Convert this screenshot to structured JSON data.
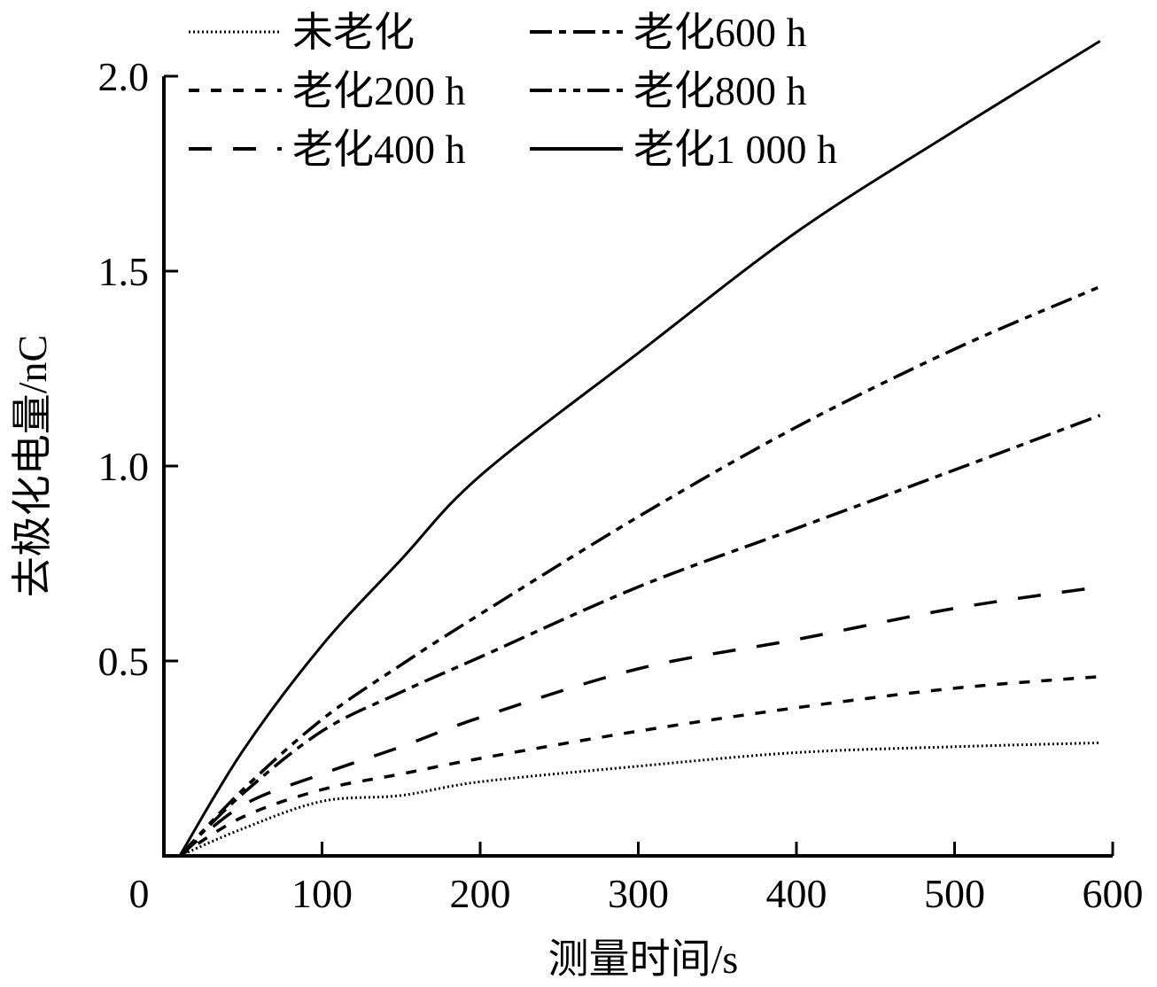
{
  "chart_data": {
    "type": "line",
    "title": "",
    "xlabel": "测量时间/s",
    "ylabel": "去极化电量/nC",
    "xlim": [
      0,
      600
    ],
    "ylim": [
      0,
      2.0
    ],
    "x_ticks": [
      0,
      100,
      200,
      300,
      400,
      500,
      600
    ],
    "x_tick_labels": [
      "0",
      "100",
      "200",
      "300",
      "400",
      "500",
      "600"
    ],
    "y_ticks": [
      0.5,
      1.0,
      1.5,
      2.0
    ],
    "y_tick_labels": [
      "0.5",
      "1.0",
      "1.5",
      "2.0"
    ],
    "grid": false,
    "legend_position": "top-left, 2 columns × 3 rows",
    "x": [
      10,
      50,
      100,
      150,
      200,
      300,
      400,
      500,
      592
    ],
    "series": [
      {
        "name": "未老化",
        "style": "dotted",
        "values": [
          0,
          0.07,
          0.14,
          0.155,
          0.19,
          0.23,
          0.265,
          0.28,
          0.29
        ]
      },
      {
        "name": "老化200 h",
        "style": "short-dash",
        "values": [
          0,
          0.1,
          0.17,
          0.21,
          0.25,
          0.32,
          0.38,
          0.43,
          0.46
        ]
      },
      {
        "name": "老化400 h",
        "style": "long-dash",
        "values": [
          0,
          0.13,
          0.21,
          0.28,
          0.355,
          0.48,
          0.555,
          0.635,
          0.69
        ]
      },
      {
        "name": "老化600 h",
        "style": "dash-dot",
        "values": [
          0,
          0.16,
          0.32,
          0.42,
          0.51,
          0.69,
          0.84,
          0.99,
          1.13
        ]
      },
      {
        "name": "老化800 h",
        "style": "dash-dot-dot",
        "values": [
          0,
          0.17,
          0.35,
          0.49,
          0.62,
          0.87,
          1.1,
          1.3,
          1.46
        ]
      },
      {
        "name": "老化1 000 h",
        "style": "solid",
        "values": [
          0,
          0.27,
          0.54,
          0.76,
          0.975,
          1.29,
          1.6,
          1.86,
          2.09
        ]
      }
    ]
  },
  "legend": {
    "items": [
      {
        "label": "未老化",
        "style": "dotted"
      },
      {
        "label": "老化200 h",
        "style": "short-dash"
      },
      {
        "label": "老化400 h",
        "style": "long-dash"
      },
      {
        "label": "老化600 h",
        "style": "dash-dot"
      },
      {
        "label": "老化800 h",
        "style": "dash-dot-dot"
      },
      {
        "label": "老化1 000 h",
        "style": "solid"
      }
    ]
  },
  "colors": {
    "line": "#000000",
    "background": "#ffffff"
  }
}
